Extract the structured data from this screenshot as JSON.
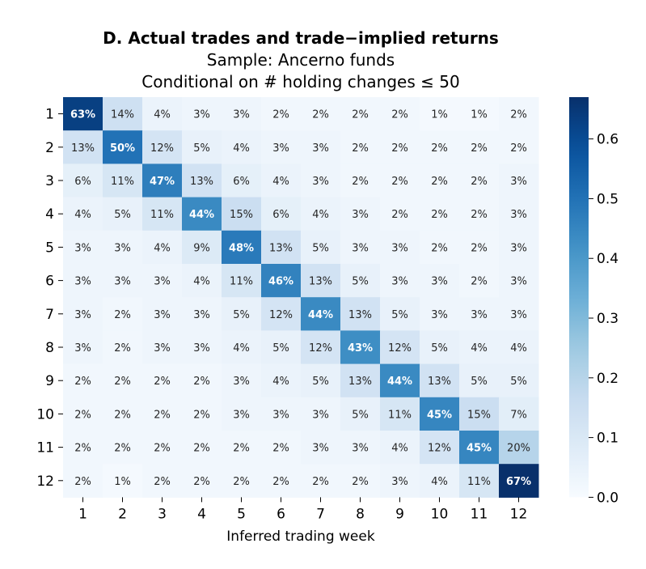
{
  "chart_data": {
    "type": "heatmap",
    "title": "D. Actual trades and trade−implied returns",
    "subtitle_1": "Sample: Ancerno funds",
    "subtitle_2": "Conditional on # holding changes ≤ 50",
    "xlabel": "Inferred trading week",
    "ylabel": "",
    "x_categories": [
      "1",
      "2",
      "3",
      "4",
      "5",
      "6",
      "7",
      "8",
      "9",
      "10",
      "11",
      "12"
    ],
    "y_categories": [
      "1",
      "2",
      "3",
      "4",
      "5",
      "6",
      "7",
      "8",
      "9",
      "10",
      "11",
      "12"
    ],
    "values": [
      [
        63,
        14,
        4,
        3,
        3,
        2,
        2,
        2,
        2,
        1,
        1,
        2
      ],
      [
        13,
        50,
        12,
        5,
        4,
        3,
        3,
        2,
        2,
        2,
        2,
        2
      ],
      [
        6,
        11,
        47,
        13,
        6,
        4,
        3,
        2,
        2,
        2,
        2,
        3
      ],
      [
        4,
        5,
        11,
        44,
        15,
        6,
        4,
        3,
        2,
        2,
        2,
        3
      ],
      [
        3,
        3,
        4,
        9,
        48,
        13,
        5,
        3,
        3,
        2,
        2,
        3
      ],
      [
        3,
        3,
        3,
        4,
        11,
        46,
        13,
        5,
        3,
        3,
        2,
        3
      ],
      [
        3,
        2,
        3,
        3,
        5,
        12,
        44,
        13,
        5,
        3,
        3,
        3
      ],
      [
        3,
        2,
        3,
        3,
        4,
        5,
        12,
        43,
        12,
        5,
        4,
        4
      ],
      [
        2,
        2,
        2,
        2,
        3,
        4,
        5,
        13,
        44,
        13,
        5,
        5
      ],
      [
        2,
        2,
        2,
        2,
        3,
        3,
        3,
        5,
        11,
        45,
        15,
        7
      ],
      [
        2,
        2,
        2,
        2,
        2,
        2,
        3,
        3,
        4,
        12,
        45,
        20
      ],
      [
        2,
        1,
        2,
        2,
        2,
        2,
        2,
        2,
        3,
        4,
        11,
        67
      ]
    ],
    "value_format": "percent",
    "colormap": "Blues",
    "color_min": 0.0,
    "color_max": 0.67,
    "colorbar_ticks": [
      "0.0",
      "0.1",
      "0.2",
      "0.3",
      "0.4",
      "0.5",
      "0.6"
    ],
    "colorbar_tick_values": [
      0.0,
      0.1,
      0.2,
      0.3,
      0.4,
      0.5,
      0.6
    ]
  }
}
